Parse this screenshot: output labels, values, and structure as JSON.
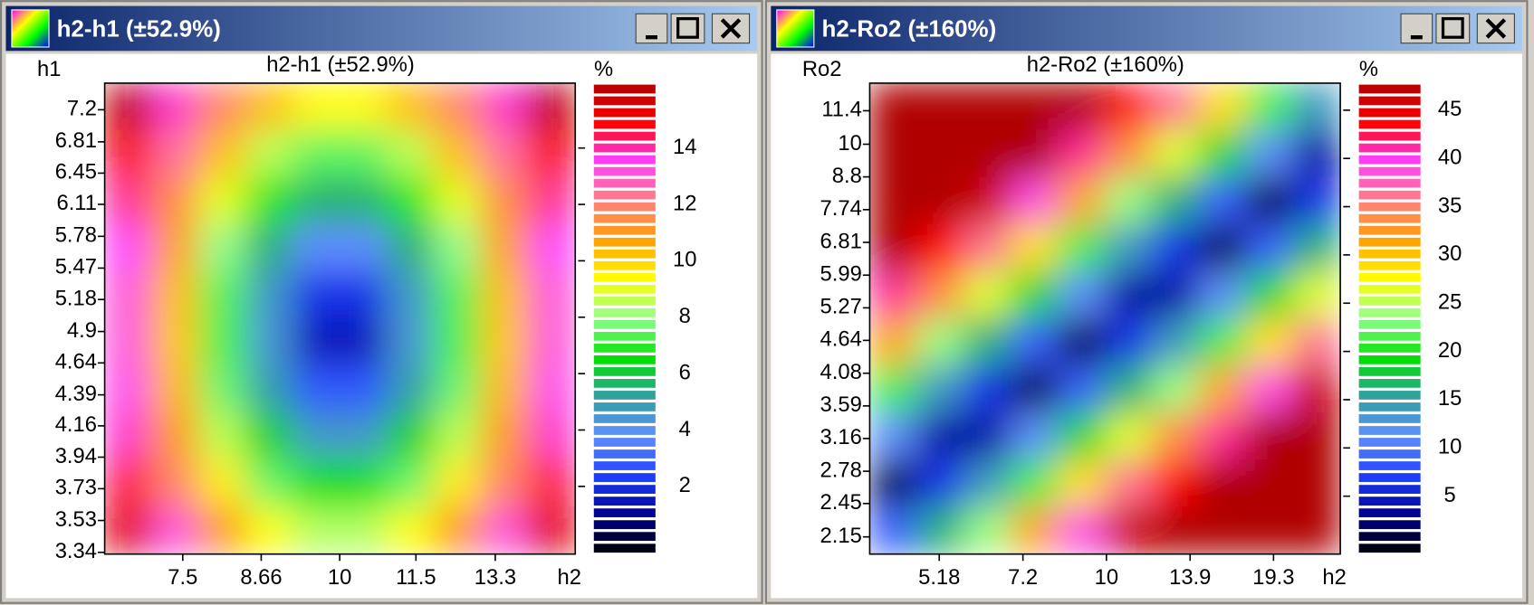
{
  "windows": [
    {
      "title": "h2-h1   (±52.9%)",
      "chart_data": {
        "type": "heatmap",
        "title": "h2-h1   (±52.9%)",
        "xlabel": "h2",
        "ylabel": "h1",
        "colorbar_label": "%",
        "xscale": "log",
        "yscale": "log",
        "xlim": [
          6.5,
          15.4
        ],
        "xticks": [
          7.5,
          8.66,
          10,
          11.5,
          13.3
        ],
        "ylim": [
          3.33,
          7.54
        ],
        "yticks": [
          3.34,
          3.53,
          3.73,
          3.94,
          4.16,
          4.39,
          4.64,
          4.9,
          5.18,
          5.47,
          5.78,
          6.11,
          6.45,
          6.81,
          7.2
        ],
        "clim": [
          -0.4,
          16.3
        ],
        "cticks": [
          2,
          4,
          6,
          8,
          10,
          12,
          14
        ],
        "colormap": [
          "#000000",
          "#000090",
          "#2040ff",
          "#6090ff",
          "#30a0a0",
          "#00e000",
          "#90ff90",
          "#ffff00",
          "#ffa000",
          "#ff8080",
          "#ff40ff",
          "#ff0000",
          "#b00000"
        ],
        "z": [
          [
            16.0,
            13.8,
            11.8,
            10.3,
            9.4,
            9.4,
            10.3,
            11.8,
            13.8,
            16.0
          ],
          [
            15.0,
            12.5,
            10.3,
            8.5,
            7.5,
            7.5,
            8.5,
            10.3,
            12.5,
            15.0
          ],
          [
            14.1,
            11.5,
            9.0,
            6.9,
            5.6,
            5.6,
            6.9,
            9.0,
            11.5,
            14.1
          ],
          [
            13.5,
            10.7,
            8.0,
            5.5,
            3.7,
            3.7,
            5.5,
            8.0,
            10.7,
            13.5
          ],
          [
            13.1,
            10.3,
            7.4,
            4.6,
            2.1,
            2.1,
            4.6,
            7.4,
            10.3,
            13.1
          ],
          [
            13.1,
            10.2,
            7.3,
            4.4,
            1.5,
            1.5,
            4.4,
            7.3,
            10.2,
            13.1
          ],
          [
            13.3,
            10.4,
            7.6,
            5.0,
            2.8,
            2.8,
            5.0,
            7.6,
            10.4,
            13.3
          ],
          [
            13.8,
            11.0,
            8.5,
            6.2,
            4.6,
            4.6,
            6.2,
            8.5,
            11.0,
            13.8
          ],
          [
            14.5,
            11.9,
            9.6,
            7.6,
            6.5,
            6.5,
            7.6,
            9.6,
            11.9,
            14.5
          ],
          [
            15.4,
            13.1,
            11.0,
            9.3,
            8.4,
            8.4,
            9.3,
            11.0,
            13.1,
            15.4
          ]
        ]
      }
    },
    {
      "title": "h2-Ro2   (±160%)",
      "chart_data": {
        "type": "heatmap",
        "title": "h2-Ro2   (±160%)",
        "xlabel": "h2",
        "ylabel": "Ro2",
        "colorbar_label": "%",
        "xscale": "log",
        "yscale": "log",
        "xlim": [
          3.94,
          25.1
        ],
        "xticks": [
          5.18,
          7.2,
          10,
          13.9,
          19.3
        ],
        "ylim": [
          2.01,
          12.7
        ],
        "yticks": [
          2.15,
          2.45,
          2.78,
          3.16,
          3.59,
          4.08,
          4.64,
          5.27,
          5.99,
          6.81,
          7.74,
          8.8,
          10,
          11.4
        ],
        "clim": [
          -1.0,
          47.8
        ],
        "cticks": [
          5,
          10,
          15,
          20,
          25,
          30,
          35,
          40,
          45
        ],
        "colormap": [
          "#000000",
          "#000090",
          "#2040ff",
          "#6090ff",
          "#30a0a0",
          "#00e000",
          "#90ff90",
          "#ffff00",
          "#ffa000",
          "#ff8080",
          "#ff40ff",
          "#ff0000",
          "#b00000"
        ],
        "z": [
          [
            48,
            48,
            48,
            48,
            48,
            43.8,
            36.3,
            28.8,
            21.3,
            13.8
          ],
          [
            48,
            48,
            48,
            48,
            41.3,
            33.8,
            26.3,
            18.8,
            11.3,
            3.8
          ],
          [
            48,
            48,
            46.3,
            38.8,
            31.3,
            23.8,
            16.3,
            8.8,
            1.3,
            6.3
          ],
          [
            48,
            43.8,
            36.3,
            28.8,
            21.3,
            13.8,
            6.3,
            1.3,
            8.8,
            16.3
          ],
          [
            41.3,
            33.8,
            26.3,
            18.8,
            11.3,
            3.8,
            3.8,
            11.3,
            18.8,
            26.3
          ],
          [
            31.3,
            23.8,
            16.3,
            8.8,
            1.3,
            6.3,
            13.8,
            21.3,
            28.8,
            36.3
          ],
          [
            21.3,
            13.8,
            6.3,
            1.3,
            8.8,
            16.3,
            23.8,
            31.3,
            38.8,
            46.3
          ],
          [
            11.3,
            3.8,
            3.8,
            11.3,
            18.8,
            26.3,
            33.8,
            41.3,
            48,
            48
          ],
          [
            1.3,
            6.3,
            13.8,
            21.3,
            28.8,
            36.3,
            43.8,
            48,
            48,
            48
          ],
          [
            8.8,
            16.3,
            23.8,
            31.3,
            38.8,
            46.3,
            48,
            48,
            48,
            48
          ]
        ]
      }
    }
  ]
}
